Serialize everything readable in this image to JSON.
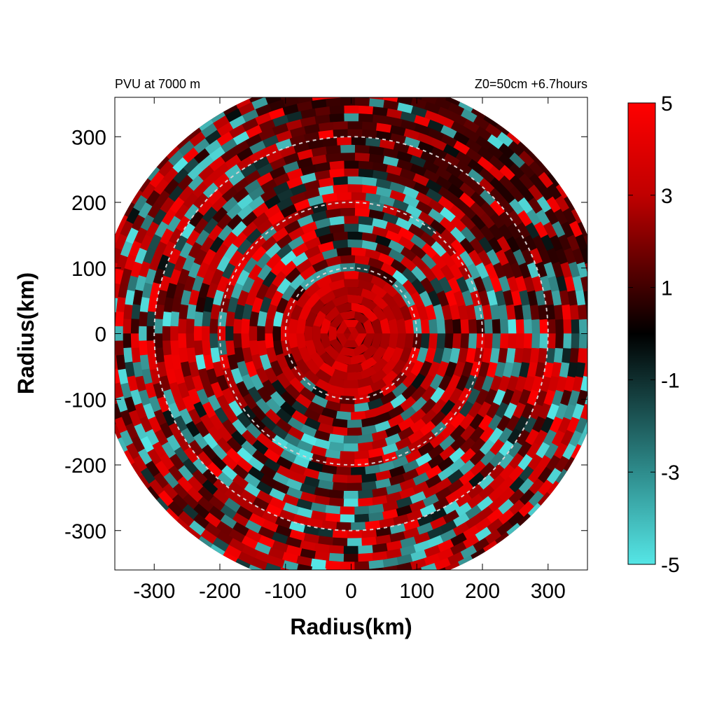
{
  "chart_data": {
    "type": "heatmap",
    "subtype": "polar-field",
    "title_left": "PVU at  7000 m",
    "title_right": "Z0=50cm  +6.7hours",
    "xlabel": "Radius(km)",
    "ylabel": "Radius(km)",
    "xlim": [
      -360,
      360
    ],
    "ylim": [
      -360,
      360
    ],
    "x_ticks": [
      -300,
      -200,
      -100,
      0,
      100,
      200,
      300
    ],
    "y_ticks": [
      -300,
      -200,
      -100,
      0,
      100,
      200,
      300
    ],
    "x_tick_labels": [
      "-300",
      "-200",
      "-100",
      "0",
      "100",
      "200",
      "300"
    ],
    "y_tick_labels": [
      "-300",
      "-200",
      "-100",
      "0",
      "100",
      "200",
      "300"
    ],
    "domain_radius_km": 390,
    "range_circles_km": [
      100,
      200,
      300
    ],
    "colorbar": {
      "range": [
        -5,
        5
      ],
      "ticks": [
        5,
        3,
        1,
        -1,
        -3,
        -5
      ],
      "tick_labels": [
        "5",
        "3",
        "1",
        "-1",
        "-3",
        "-5"
      ],
      "colors": {
        "max": "#ff0000",
        "mid": "#000000",
        "min": "#55e6e6"
      }
    },
    "grid": false
  }
}
